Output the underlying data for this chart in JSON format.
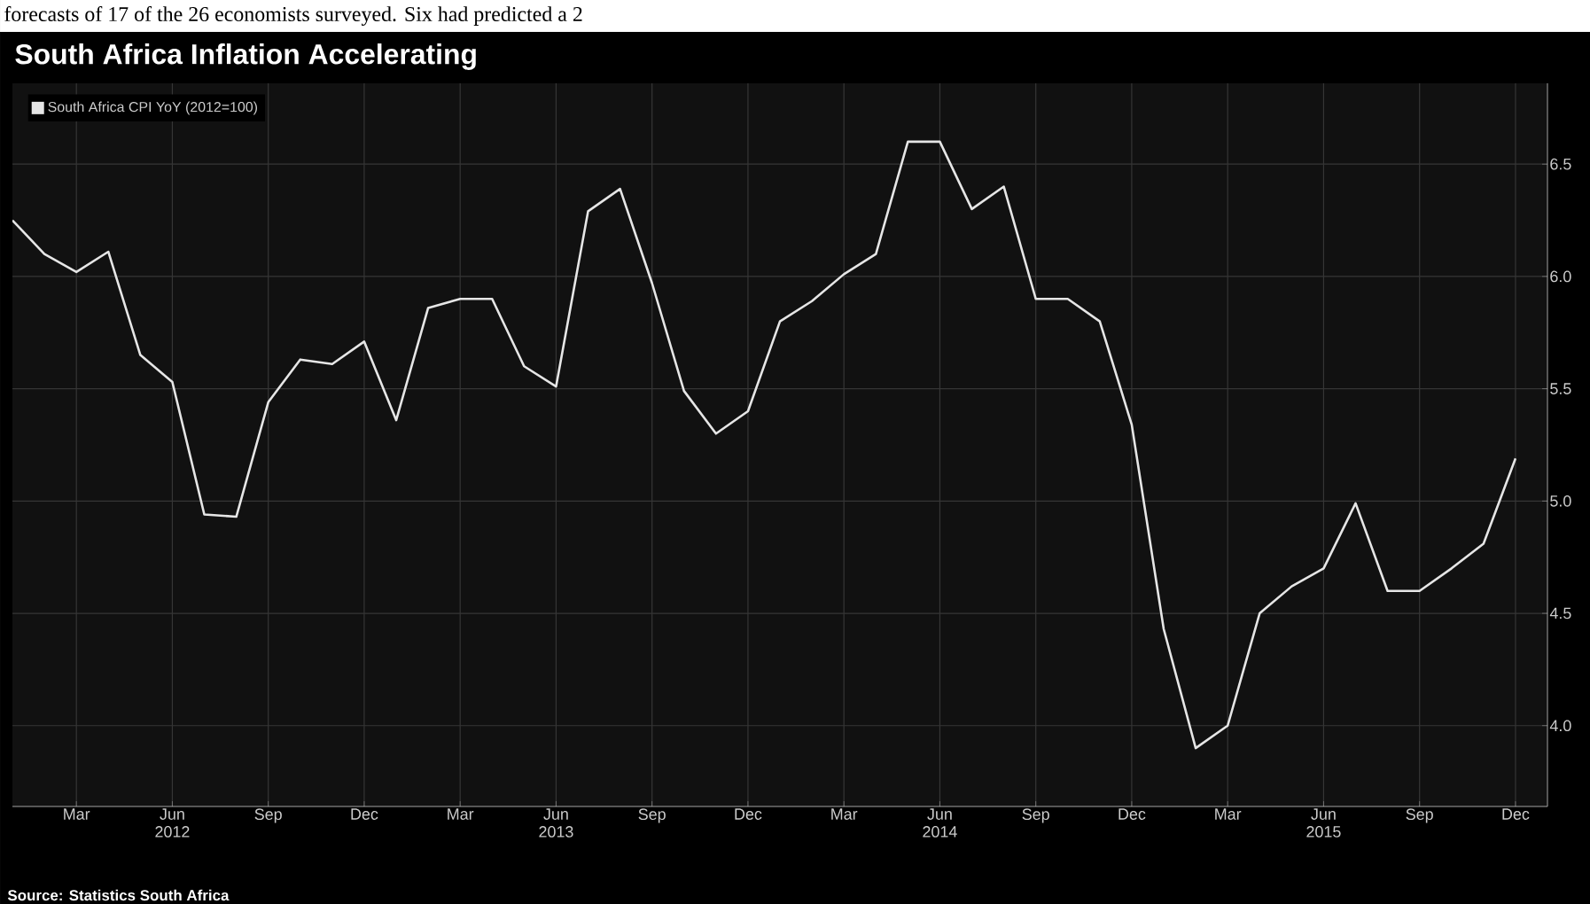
{
  "chart_data": {
    "type": "line",
    "title": "South Africa Inflation Accelerating",
    "annotations": [
      "forecasts of 17 of the 26 economists surveyed. Six had predicted a 2",
      "Source: Statistics South Africa"
    ],
    "x": [
      "2012-01",
      "2012-02",
      "2012-03",
      "2012-04",
      "2012-05",
      "2012-06",
      "2012-07",
      "2012-08",
      "2012-09",
      "2012-10",
      "2012-11",
      "2012-12",
      "2013-01",
      "2013-02",
      "2013-03",
      "2013-04",
      "2013-05",
      "2013-06",
      "2013-07",
      "2013-08",
      "2013-09",
      "2013-10",
      "2013-11",
      "2013-12",
      "2014-01",
      "2014-02",
      "2014-03",
      "2014-04",
      "2014-05",
      "2014-06",
      "2014-07",
      "2014-08",
      "2014-09",
      "2014-10",
      "2014-11",
      "2014-12",
      "2015-01",
      "2015-02",
      "2015-03",
      "2015-04",
      "2015-05",
      "2015-06",
      "2015-07",
      "2015-08",
      "2015-09",
      "2015-10",
      "2015-11",
      "2015-12"
    ],
    "series": [
      {
        "name": "South Africa CPI YoY (2012=100)",
        "color": "#e6e6e6",
        "values": [
          6.25,
          6.1,
          6.02,
          6.11,
          5.65,
          5.53,
          4.94,
          4.93,
          5.44,
          5.63,
          5.61,
          5.71,
          5.36,
          5.86,
          5.9,
          5.9,
          5.6,
          5.51,
          6.29,
          6.39,
          5.97,
          5.49,
          5.3,
          5.4,
          5.8,
          5.89,
          6.01,
          6.1,
          6.6,
          6.6,
          6.3,
          6.4,
          5.9,
          5.9,
          5.8,
          5.34,
          4.43,
          3.9,
          4.0,
          4.5,
          4.62,
          4.7,
          4.99,
          4.6,
          4.6,
          4.7,
          4.81,
          5.19
        ]
      }
    ],
    "xlim": [
      "2012-01",
      "2016-01"
    ],
    "xticks": [
      {
        "value": "2012-03",
        "label": "Mar"
      },
      {
        "value": "2012-06",
        "label": "Jun 2012"
      },
      {
        "value": "2012-09",
        "label": "Sep"
      },
      {
        "value": "2012-12",
        "label": "Dec"
      },
      {
        "value": "2013-03",
        "label": "Mar"
      },
      {
        "value": "2013-06",
        "label": "Jun 2013"
      },
      {
        "value": "2013-09",
        "label": "Sep"
      },
      {
        "value": "2013-12",
        "label": "Dec"
      },
      {
        "value": "2014-03",
        "label": "Mar"
      },
      {
        "value": "2014-06",
        "label": "Jun 2014"
      },
      {
        "value": "2014-09",
        "label": "Sep"
      },
      {
        "value": "2014-12",
        "label": "Dec"
      },
      {
        "value": "2015-03",
        "label": "Mar"
      },
      {
        "value": "2015-06",
        "label": "Jun 2015"
      },
      {
        "value": "2015-09",
        "label": "Sep"
      },
      {
        "value": "2015-12",
        "label": "Dec"
      }
    ],
    "ylim": [
      3.64,
      6.86
    ],
    "yticks": [
      {
        "value": 4,
        "label": "4.0"
      },
      {
        "value": 4.5,
        "label": "4.5"
      },
      {
        "value": 5,
        "label": "5.0"
      },
      {
        "value": 5.5,
        "label": "5.5"
      },
      {
        "value": 6,
        "label": "6.0"
      },
      {
        "value": 6.5,
        "label": "6.5"
      }
    ],
    "grid": true,
    "legend": "top left",
    "marker": "none",
    "line_style": "solid"
  }
}
